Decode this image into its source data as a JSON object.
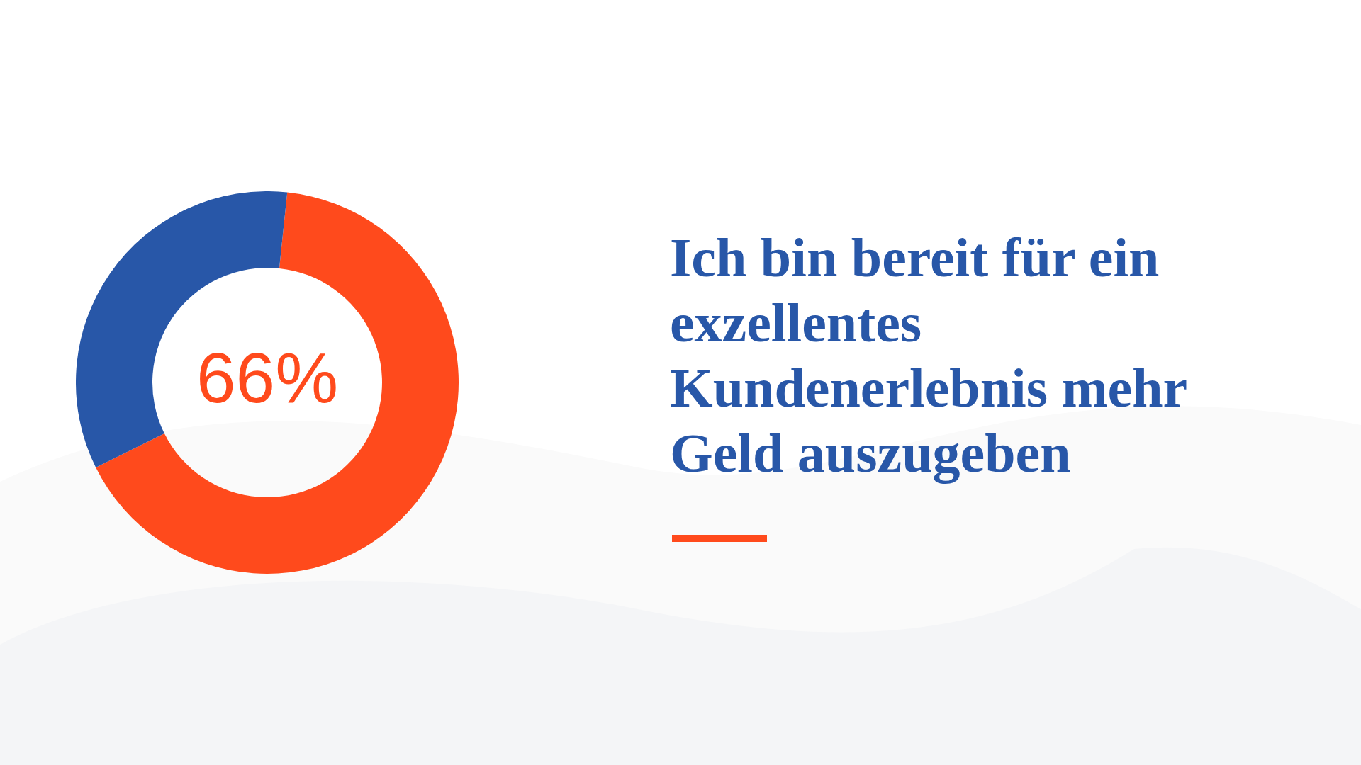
{
  "chart_data": {
    "type": "donut",
    "title": "Ich bin bereit für ein exzellentes Kundenerlebnis mehr Geld auszugeben",
    "categories": [
      null,
      null
    ],
    "values": [
      66,
      34
    ],
    "colors": [
      "#ff4a1c",
      "#2857a8"
    ],
    "value_labels": [
      "66%",
      null
    ],
    "legend": false
  }
}
